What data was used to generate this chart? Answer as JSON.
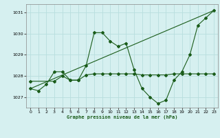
{
  "title": "Graphe pression niveau de la mer (hPa)",
  "bg_color": "#d6f0f0",
  "grid_color": "#b8dede",
  "line_color": "#1a5c1a",
  "xlim": [
    -0.5,
    23.5
  ],
  "ylim": [
    1026.5,
    1031.4
  ],
  "yticks": [
    1027,
    1028,
    1029,
    1030,
    1031
  ],
  "xticks": [
    0,
    1,
    2,
    3,
    4,
    5,
    6,
    7,
    8,
    9,
    10,
    11,
    12,
    13,
    14,
    15,
    16,
    17,
    18,
    19,
    20,
    21,
    22,
    23
  ],
  "series1": {
    "x": [
      0,
      1,
      2,
      3,
      4,
      5,
      6,
      7,
      8,
      9,
      10,
      11,
      12,
      13,
      14,
      15,
      16,
      17,
      18,
      19,
      20,
      21,
      22,
      23
    ],
    "y": [
      1027.4,
      1027.3,
      1027.6,
      1028.2,
      1028.2,
      1027.8,
      1027.8,
      1028.5,
      1030.05,
      1030.05,
      1029.65,
      1029.4,
      1029.55,
      1028.3,
      1027.4,
      1027.0,
      1026.7,
      1026.85,
      1027.8,
      1028.2,
      1029.0,
      1030.4,
      1030.75,
      1031.1
    ]
  },
  "series2": {
    "x": [
      0,
      3,
      4,
      5,
      6,
      7,
      8,
      9,
      10,
      11,
      12,
      13,
      14,
      15,
      16,
      17,
      18,
      19,
      20,
      21,
      22,
      23
    ],
    "y": [
      1027.75,
      1027.75,
      1028.0,
      1027.8,
      1027.8,
      1028.05,
      1028.1,
      1028.1,
      1028.1,
      1028.1,
      1028.1,
      1028.1,
      1028.05,
      1028.05,
      1028.05,
      1028.05,
      1028.1,
      1028.1,
      1028.1,
      1028.1,
      1028.1,
      1028.1
    ]
  },
  "series3": {
    "x": [
      0,
      23
    ],
    "y": [
      1027.4,
      1031.1
    ]
  }
}
